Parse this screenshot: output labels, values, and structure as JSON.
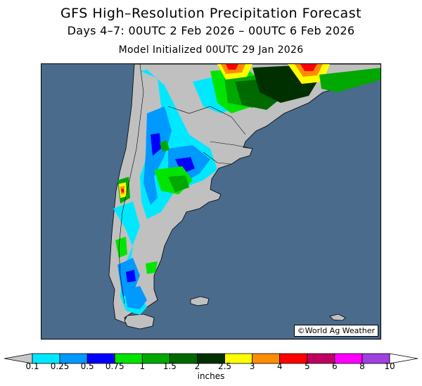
{
  "header": {
    "title": "GFS High–Resolution Precipitation Forecast",
    "period": "Days 4–7: 00UTC 2 Feb 2026 – 00UTC 6 Feb 2026",
    "initialized": "Model Initialized 00UTC 29 Jan 2026"
  },
  "map": {
    "credit": "©World Ag Weather",
    "region": "southern South America",
    "ocean_color": "#4a6b8c",
    "land_color": "#c0c0c0",
    "highlights": [
      {
        "area": "southern Brazil",
        "range": "2.5–4+ inches"
      },
      {
        "area": "Chilean coast near 42°S",
        "range": "3–4 inches"
      },
      {
        "area": "Andes / western Argentina",
        "range": "0.1–1 inch"
      },
      {
        "area": "southern Chile / Tierra del Fuego",
        "range": "0.1–1 inch"
      }
    ]
  },
  "legend": {
    "units": "inches",
    "labels": [
      "0.1",
      "0.25",
      "0.5",
      "0.75",
      "1",
      "1.5",
      "2",
      "2.5",
      "3",
      "4",
      "5",
      "6",
      "8",
      "10"
    ],
    "colors": [
      "#00e8ff",
      "#0099ff",
      "#0000ff",
      "#00e400",
      "#00a800",
      "#006a00",
      "#003000",
      "#ffff00",
      "#ff8c00",
      "#ff0000",
      "#c00060",
      "#ff00ff",
      "#a040e0"
    ],
    "under_color": "#c8c8c8",
    "over_color": "#ffffff"
  }
}
